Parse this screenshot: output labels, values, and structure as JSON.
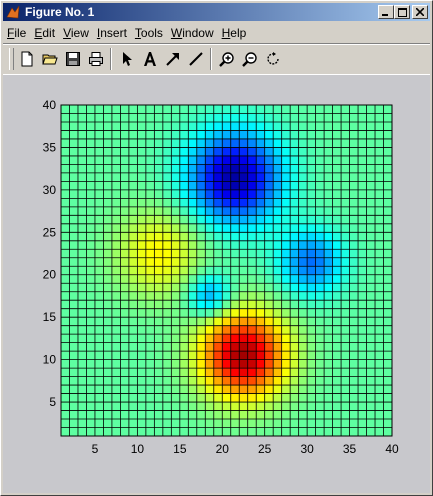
{
  "window": {
    "title": "Figure No. 1",
    "icon": "matlab-icon",
    "controls": [
      "minimize-icon",
      "maximize-icon",
      "close-icon"
    ]
  },
  "menu": [
    {
      "label": "File",
      "underline_index": 0
    },
    {
      "label": "Edit",
      "underline_index": 0
    },
    {
      "label": "View",
      "underline_index": 0
    },
    {
      "label": "Insert",
      "underline_index": 0
    },
    {
      "label": "Tools",
      "underline_index": 0
    },
    {
      "label": "Window",
      "underline_index": 0
    },
    {
      "label": "Help",
      "underline_index": 0
    }
  ],
  "toolbar": [
    {
      "icon": "new-figure-icon",
      "tooltip": ""
    },
    {
      "icon": "open-folder-icon",
      "tooltip": ""
    },
    {
      "icon": "save-icon",
      "tooltip": ""
    },
    {
      "icon": "print-icon",
      "tooltip": ""
    },
    {
      "separator": true
    },
    {
      "icon": "select-arrow-icon",
      "tooltip": ""
    },
    {
      "icon": "insert-text-icon",
      "tooltip": ""
    },
    {
      "icon": "insert-arrow-icon",
      "tooltip": ""
    },
    {
      "icon": "insert-line-icon",
      "tooltip": ""
    },
    {
      "separator": true
    },
    {
      "icon": "zoom-in-icon",
      "tooltip": ""
    },
    {
      "icon": "zoom-out-icon",
      "tooltip": ""
    },
    {
      "icon": "rotate-3d-icon",
      "tooltip": ""
    }
  ],
  "chart_data": {
    "type": "heatmap",
    "title": "",
    "xlabel": "",
    "ylabel": "",
    "xlim": [
      1,
      40
    ],
    "ylim": [
      1,
      40
    ],
    "xticks": [
      5,
      10,
      15,
      20,
      25,
      30,
      35,
      40
    ],
    "yticks": [
      5,
      10,
      15,
      20,
      25,
      30,
      35,
      40
    ],
    "colormap": "jet",
    "grid_size": [
      40,
      40
    ],
    "color_range": [
      -7,
      8
    ],
    "base_value": 0,
    "grid_lines": true,
    "grid_line_color": "#000000",
    "features": [
      {
        "center": [
          22,
          10
        ],
        "sigma": 3.5,
        "peak": 7.5
      },
      {
        "center": [
          12,
          22
        ],
        "sigma": 3.5,
        "peak": 2.5
      },
      {
        "center": [
          21,
          31
        ],
        "sigma": 3.7,
        "peak": -6.5
      },
      {
        "center": [
          30,
          21
        ],
        "sigma": 2.6,
        "peak": -3.5
      },
      {
        "center": [
          18,
          17
        ],
        "sigma": 1.8,
        "peak": -3.0
      }
    ]
  }
}
